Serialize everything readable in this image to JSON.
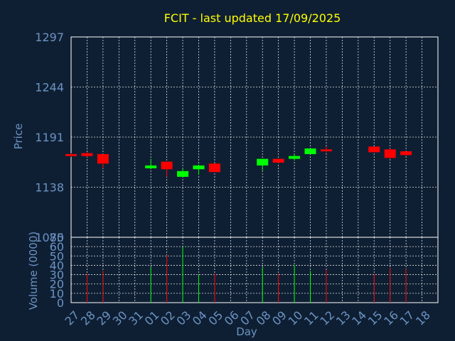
{
  "chart_data": {
    "type": "candlestick",
    "title": "FCIT - last updated 17/09/2025",
    "xlabel": "Day",
    "price_panel": {
      "ylabel": "Price",
      "ylim": [
        1085,
        1297
      ],
      "yticks": [
        "1297",
        "1244",
        "1191",
        "1138",
        "1085"
      ],
      "grid": true
    },
    "volume_panel": {
      "ylabel": "Volume (0000)",
      "ylim": [
        0,
        70
      ],
      "yticks": [
        "70",
        "60",
        "50",
        "40",
        "30",
        "20",
        "10",
        "0"
      ],
      "grid": true
    },
    "x_ticks": [
      "27",
      "28",
      "29",
      "30",
      "31",
      "01",
      "02",
      "03",
      "04",
      "05",
      "06",
      "07",
      "08",
      "09",
      "10",
      "11",
      "12",
      "13",
      "14",
      "15",
      "16",
      "17",
      "18"
    ],
    "colors": {
      "up": "#00ff00",
      "down": "#ff0000",
      "background": "#0f1f33",
      "frame": "#ffffff",
      "title": "#ffff00",
      "tick": "#6b93c4"
    },
    "candles": [
      {
        "day": "27",
        "open": 1173,
        "close": 1171,
        "high": 1174,
        "low": 1170,
        "volume": 0
      },
      {
        "day": "28",
        "open": 1174,
        "close": 1171,
        "high": 1175,
        "low": 1170,
        "volume": 31
      },
      {
        "day": "29",
        "open": 1173,
        "close": 1163,
        "high": 1173,
        "low": 1158,
        "volume": 34
      },
      {
        "day": "01",
        "open": 1158,
        "close": 1161,
        "high": 1168,
        "low": 1157,
        "volume": 38
      },
      {
        "day": "02",
        "open": 1165,
        "close": 1157,
        "high": 1165,
        "low": 1149,
        "volume": 51
      },
      {
        "day": "03",
        "open": 1149,
        "close": 1155,
        "high": 1158,
        "low": 1149,
        "volume": 60
      },
      {
        "day": "04",
        "open": 1157,
        "close": 1161,
        "high": 1162,
        "low": 1151,
        "volume": 30
      },
      {
        "day": "05",
        "open": 1163,
        "close": 1154,
        "high": 1163,
        "low": 1154,
        "volume": 31
      },
      {
        "day": "08",
        "open": 1161,
        "close": 1168,
        "high": 1168,
        "low": 1156,
        "volume": 38
      },
      {
        "day": "09",
        "open": 1168,
        "close": 1164,
        "high": 1168,
        "low": 1163,
        "volume": 31
      },
      {
        "day": "10",
        "open": 1168,
        "close": 1171,
        "high": 1173,
        "low": 1166,
        "volume": 40
      },
      {
        "day": "11",
        "open": 1173,
        "close": 1179,
        "high": 1179,
        "low": 1173,
        "volume": 34
      },
      {
        "day": "12",
        "open": 1178,
        "close": 1176,
        "high": 1181,
        "low": 1174,
        "volume": 35
      },
      {
        "day": "15",
        "open": 1181,
        "close": 1175,
        "high": 1181,
        "low": 1175,
        "volume": 31
      },
      {
        "day": "16",
        "open": 1178,
        "close": 1169,
        "high": 1179,
        "low": 1168,
        "volume": 37
      },
      {
        "day": "17",
        "open": 1176,
        "close": 1172,
        "high": 1176,
        "low": 1171,
        "volume": 36
      }
    ]
  }
}
